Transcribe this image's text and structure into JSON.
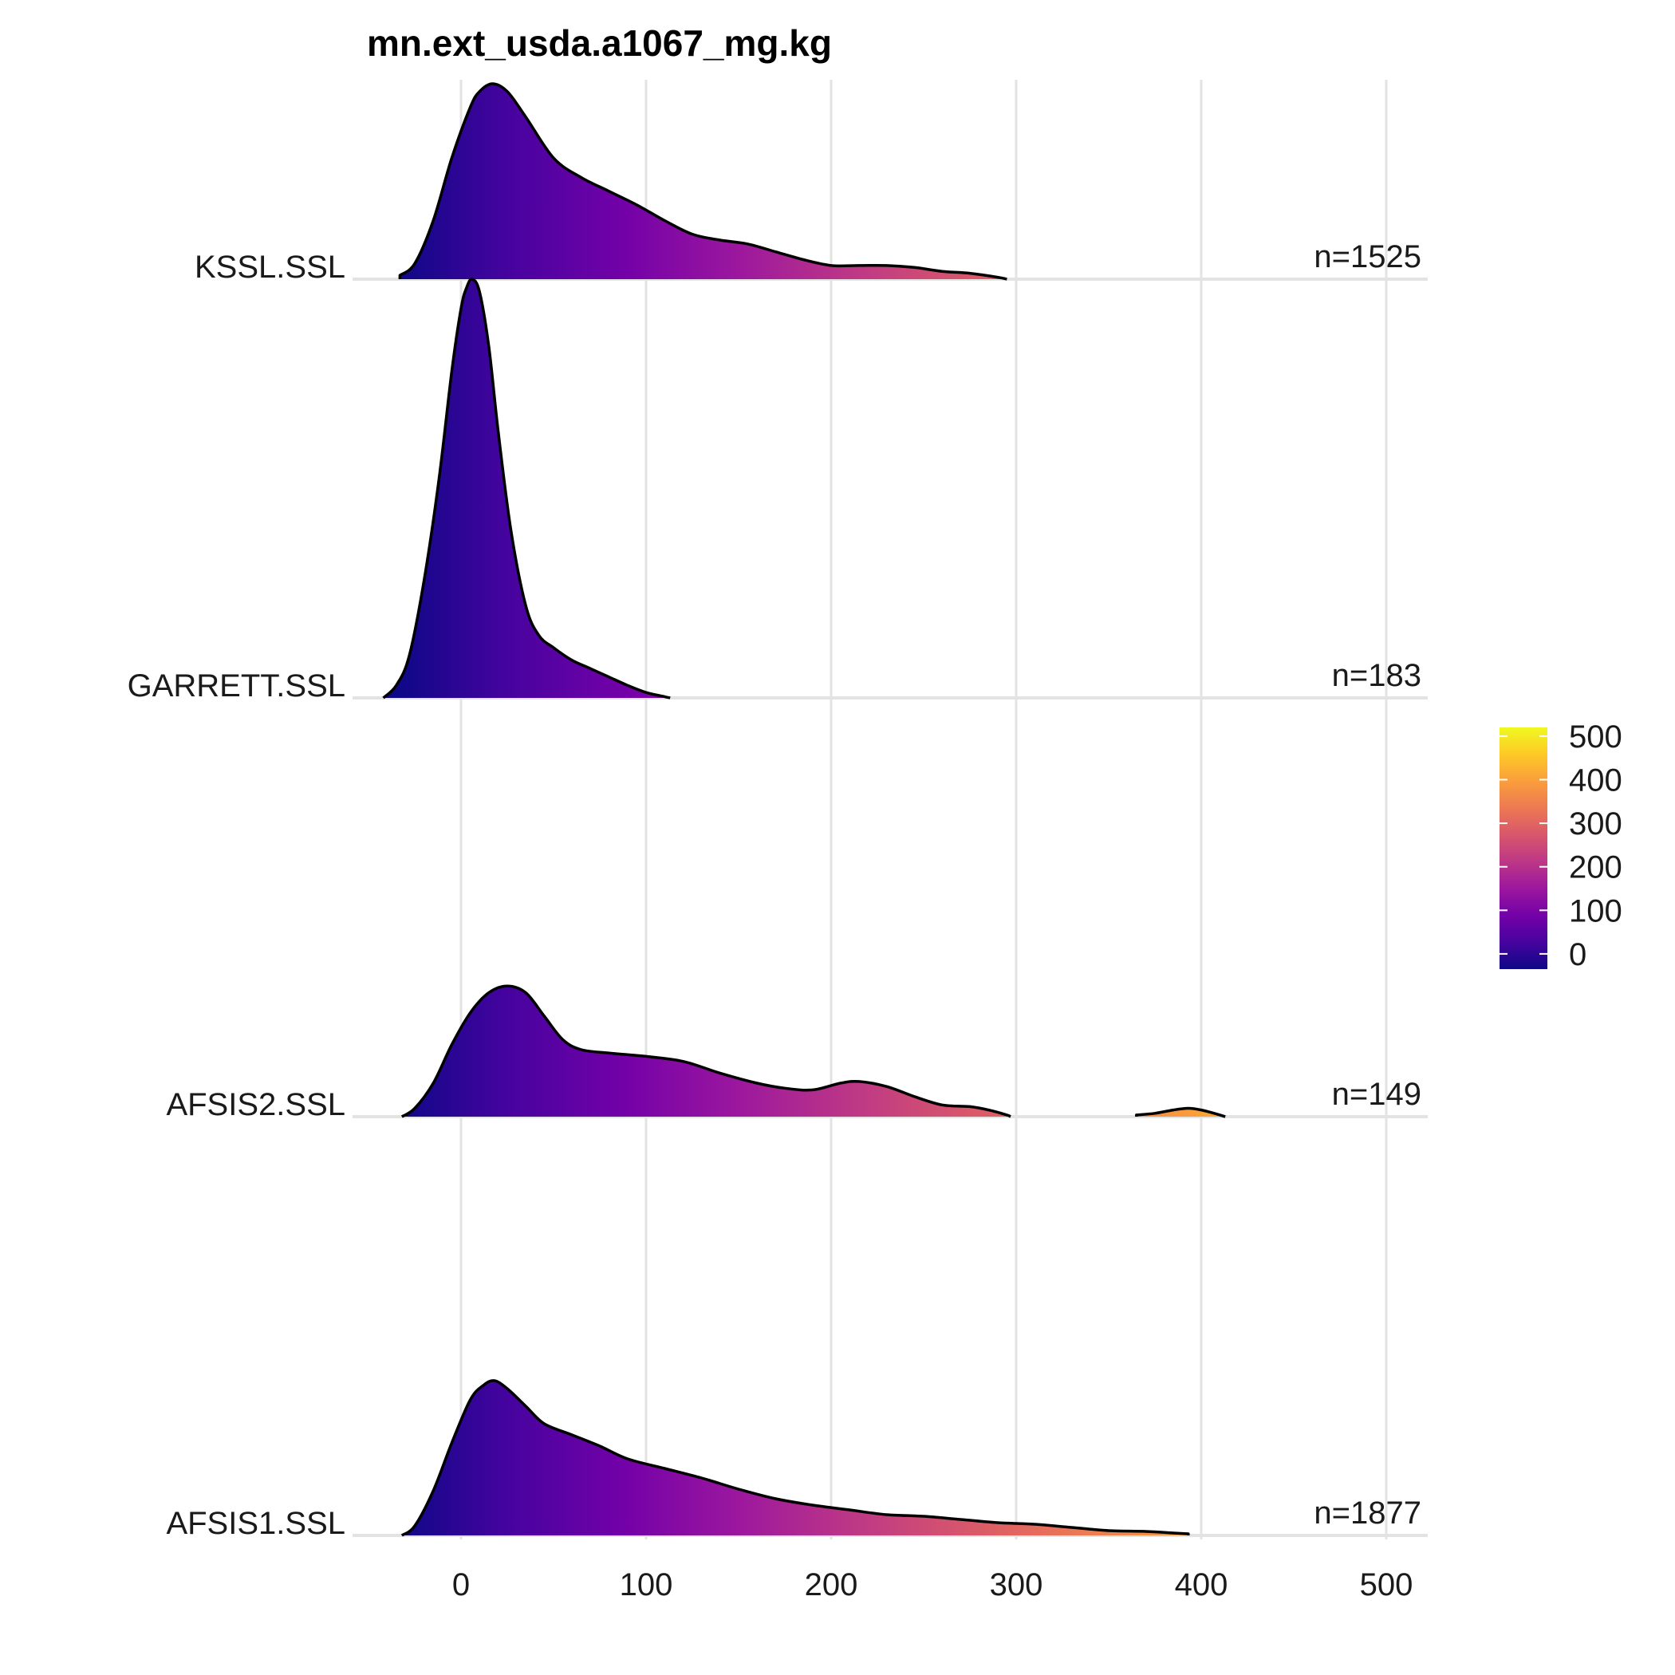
{
  "chart_data": {
    "type": "ridgeline",
    "title": "mn.ext_usda.a1067_mg.kg",
    "xlabel": "",
    "ylabel": "",
    "xlim": [
      -40,
      520
    ],
    "x_ticks": [
      0,
      100,
      200,
      300,
      400,
      500
    ],
    "grid": true,
    "legend_position": "right",
    "colorbar": {
      "palette": "plasma",
      "range": [
        -35,
        520
      ],
      "ticks": [
        0,
        100,
        200,
        300,
        400,
        500
      ],
      "colors": [
        "#0d0887",
        "#47039f",
        "#7301a8",
        "#9c179e",
        "#bd3786",
        "#d8576b",
        "#ed7953",
        "#fa9e3b",
        "#fdc926",
        "#f0f921"
      ]
    },
    "series": [
      {
        "name": "KSSL.SSL",
        "n_label": "n=1525",
        "points": [
          [
            -33,
            0.02
          ],
          [
            -25,
            0.08
          ],
          [
            -15,
            0.3
          ],
          [
            -5,
            0.62
          ],
          [
            5,
            0.88
          ],
          [
            10,
            0.96
          ],
          [
            17,
            1.0
          ],
          [
            25,
            0.96
          ],
          [
            35,
            0.83
          ],
          [
            50,
            0.62
          ],
          [
            65,
            0.52
          ],
          [
            80,
            0.45
          ],
          [
            95,
            0.38
          ],
          [
            110,
            0.3
          ],
          [
            125,
            0.23
          ],
          [
            140,
            0.2
          ],
          [
            155,
            0.18
          ],
          [
            170,
            0.14
          ],
          [
            185,
            0.1
          ],
          [
            200,
            0.07
          ],
          [
            215,
            0.07
          ],
          [
            230,
            0.07
          ],
          [
            245,
            0.06
          ],
          [
            260,
            0.04
          ],
          [
            275,
            0.03
          ],
          [
            290,
            0.01
          ],
          [
            295,
            0.0
          ]
        ]
      },
      {
        "name": "GARRETT.SSL",
        "n_label": "n=183",
        "points": [
          [
            -42,
            0.0
          ],
          [
            -35,
            0.03
          ],
          [
            -28,
            0.1
          ],
          [
            -20,
            0.28
          ],
          [
            -12,
            0.52
          ],
          [
            -5,
            0.78
          ],
          [
            0,
            0.93
          ],
          [
            3,
            0.98
          ],
          [
            6,
            1.0
          ],
          [
            10,
            0.97
          ],
          [
            15,
            0.84
          ],
          [
            20,
            0.64
          ],
          [
            27,
            0.4
          ],
          [
            35,
            0.22
          ],
          [
            42,
            0.15
          ],
          [
            50,
            0.12
          ],
          [
            60,
            0.09
          ],
          [
            70,
            0.07
          ],
          [
            80,
            0.05
          ],
          [
            90,
            0.03
          ],
          [
            100,
            0.013
          ],
          [
            110,
            0.003
          ],
          [
            113,
            0.0
          ]
        ]
      },
      {
        "name": "AFSIS2.SSL",
        "n_label": "n=149",
        "points": [
          [
            -32,
            0.0
          ],
          [
            -25,
            0.05
          ],
          [
            -15,
            0.2
          ],
          [
            -5,
            0.43
          ],
          [
            5,
            0.62
          ],
          [
            15,
            0.74
          ],
          [
            25,
            0.78
          ],
          [
            35,
            0.74
          ],
          [
            45,
            0.6
          ],
          [
            55,
            0.46
          ],
          [
            65,
            0.4
          ],
          [
            80,
            0.38
          ],
          [
            100,
            0.36
          ],
          [
            120,
            0.33
          ],
          [
            140,
            0.26
          ],
          [
            160,
            0.2
          ],
          [
            175,
            0.17
          ],
          [
            190,
            0.16
          ],
          [
            205,
            0.2
          ],
          [
            215,
            0.21
          ],
          [
            230,
            0.18
          ],
          [
            245,
            0.12
          ],
          [
            260,
            0.07
          ],
          [
            275,
            0.06
          ],
          [
            285,
            0.04
          ],
          [
            295,
            0.01
          ],
          [
            297,
            0.0
          ]
        ],
        "points2": [
          [
            365,
            0.01
          ],
          [
            375,
            0.02
          ],
          [
            385,
            0.04
          ],
          [
            393,
            0.05
          ],
          [
            400,
            0.04
          ],
          [
            407,
            0.02
          ],
          [
            413,
            0.0
          ]
        ]
      },
      {
        "name": "AFSIS1.SSL",
        "n_label": "n=1877",
        "points": [
          [
            -32,
            0.0
          ],
          [
            -25,
            0.06
          ],
          [
            -15,
            0.28
          ],
          [
            -5,
            0.58
          ],
          [
            5,
            0.85
          ],
          [
            12,
            0.94
          ],
          [
            18,
            0.97
          ],
          [
            25,
            0.92
          ],
          [
            35,
            0.81
          ],
          [
            45,
            0.7
          ],
          [
            60,
            0.63
          ],
          [
            75,
            0.56
          ],
          [
            90,
            0.48
          ],
          [
            110,
            0.42
          ],
          [
            130,
            0.36
          ],
          [
            150,
            0.29
          ],
          [
            170,
            0.23
          ],
          [
            190,
            0.19
          ],
          [
            210,
            0.16
          ],
          [
            230,
            0.13
          ],
          [
            250,
            0.12
          ],
          [
            270,
            0.1
          ],
          [
            290,
            0.08
          ],
          [
            310,
            0.07
          ],
          [
            330,
            0.05
          ],
          [
            350,
            0.03
          ],
          [
            370,
            0.025
          ],
          [
            385,
            0.015
          ],
          [
            393,
            0.01
          ]
        ]
      }
    ]
  }
}
